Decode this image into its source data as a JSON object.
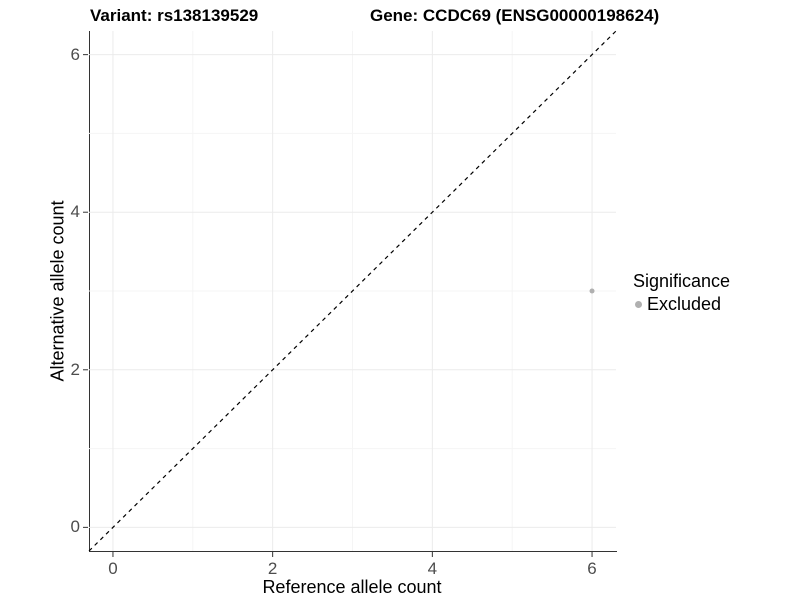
{
  "header": {
    "variant_title": "Variant: rs138139529",
    "gene_title": "Gene: CCDC69 (ENSG00000198624)"
  },
  "chart_data": {
    "type": "scatter",
    "title": "Variant: rs138139529    Gene: CCDC69 (ENSG00000198624)",
    "xlabel": "Reference allele count",
    "ylabel": "Alternative allele count",
    "xlim": [
      -0.3,
      6.3
    ],
    "ylim": [
      -0.3,
      6.3
    ],
    "xticks": [
      0,
      2,
      4,
      6
    ],
    "yticks": [
      0,
      2,
      4,
      6
    ],
    "xticks_minor": [
      1,
      3,
      5
    ],
    "yticks_minor": [
      1,
      3,
      5
    ],
    "grid": "major+minor",
    "legend_position": "right",
    "series": [
      {
        "name": "Excluded",
        "color": "#b0b0b0",
        "point_radius": 2.5,
        "points": [
          {
            "x": 6,
            "y": 3
          }
        ]
      }
    ],
    "reference_line": {
      "kind": "identity",
      "slope": 1,
      "intercept": 0,
      "linetype": "dashed",
      "color": "#000000"
    }
  },
  "legend": {
    "title": "Significance",
    "items": [
      {
        "label": "Excluded",
        "color": "#b0b0b0"
      }
    ]
  },
  "colors": {
    "grid_major": "#ebebeb",
    "grid_minor": "#f5f5f5",
    "axis_line": "#333333",
    "tick_mark": "#333333",
    "tick_label": "#4d4d4d",
    "text": "#000000",
    "background": "#ffffff"
  }
}
